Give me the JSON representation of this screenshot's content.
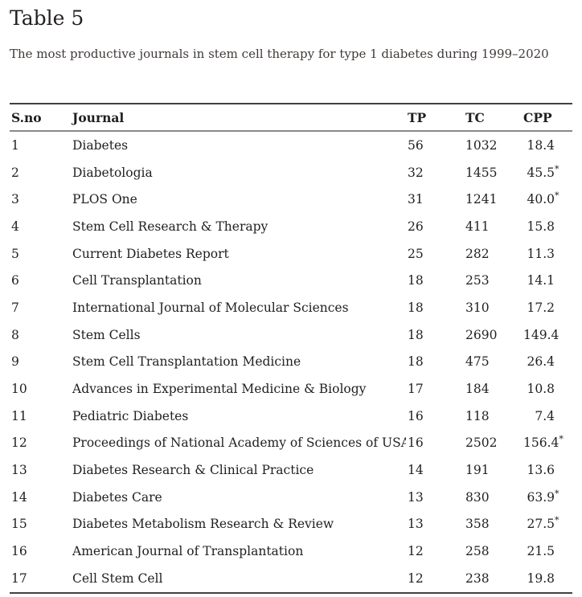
{
  "page": {
    "title": "Table 5",
    "caption": "The most productive journals in stem cell therapy for type 1 diabetes during 1999–2020"
  },
  "table": {
    "columns": [
      "S.no",
      "Journal",
      "TP",
      "TC",
      "CPP"
    ],
    "rows": [
      {
        "sno": "1",
        "journal": "Diabetes",
        "tp": "56",
        "tc": "1032",
        "cpp": "18.4",
        "cpp_sup": ""
      },
      {
        "sno": "2",
        "journal": "Diabetologia",
        "tp": "32",
        "tc": "1455",
        "cpp": "45.5",
        "cpp_sup": "*"
      },
      {
        "sno": "3",
        "journal": "PLOS One",
        "tp": "31",
        "tc": "1241",
        "cpp": "40.0",
        "cpp_sup": "*"
      },
      {
        "sno": "4",
        "journal": "Stem Cell Research & Therapy",
        "tp": "26",
        "tc": "411",
        "cpp": "15.8",
        "cpp_sup": ""
      },
      {
        "sno": "5",
        "journal": "Current Diabetes Report",
        "tp": "25",
        "tc": "282",
        "cpp": "11.3",
        "cpp_sup": ""
      },
      {
        "sno": "6",
        "journal": "Cell Transplantation",
        "tp": "18",
        "tc": "253",
        "cpp": "14.1",
        "cpp_sup": ""
      },
      {
        "sno": "7",
        "journal": "International Journal of Molecular Sciences",
        "tp": "18",
        "tc": "310",
        "cpp": "17.2",
        "cpp_sup": ""
      },
      {
        "sno": "8",
        "journal": "Stem Cells",
        "tp": "18",
        "tc": "2690",
        "cpp": "149.4",
        "cpp_sup": ""
      },
      {
        "sno": "9",
        "journal": "Stem Cell Transplantation Medicine",
        "tp": "18",
        "tc": "475",
        "cpp": "26.4",
        "cpp_sup": ""
      },
      {
        "sno": "10",
        "journal": "Advances in Experimental Medicine & Biology",
        "tp": "17",
        "tc": "184",
        "cpp": "10.8",
        "cpp_sup": ""
      },
      {
        "sno": "11",
        "journal": "Pediatric Diabetes",
        "tp": "16",
        "tc": "118",
        "cpp": "7.4",
        "cpp_sup": ""
      },
      {
        "sno": "12",
        "journal": "Proceedings of National Academy of Sciences of USA",
        "tp": "16",
        "tc": "2502",
        "cpp": "156.4",
        "cpp_sup": "*"
      },
      {
        "sno": "13",
        "journal": "Diabetes Research & Clinical Practice",
        "tp": "14",
        "tc": "191",
        "cpp": "13.6",
        "cpp_sup": ""
      },
      {
        "sno": "14",
        "journal": "Diabetes Care",
        "tp": "13",
        "tc": "830",
        "cpp": "63.9",
        "cpp_sup": "*"
      },
      {
        "sno": "15",
        "journal": "Diabetes Metabolism Research & Review",
        "tp": "13",
        "tc": "358",
        "cpp": "27.5",
        "cpp_sup": "*"
      },
      {
        "sno": "16",
        "journal": "American Journal of Transplantation",
        "tp": "12",
        "tc": "258",
        "cpp": "21.5",
        "cpp_sup": ""
      },
      {
        "sno": "17",
        "journal": "Cell Stem Cell",
        "tp": "12",
        "tc": "238",
        "cpp": "19.8",
        "cpp_sup": ""
      }
    ]
  }
}
